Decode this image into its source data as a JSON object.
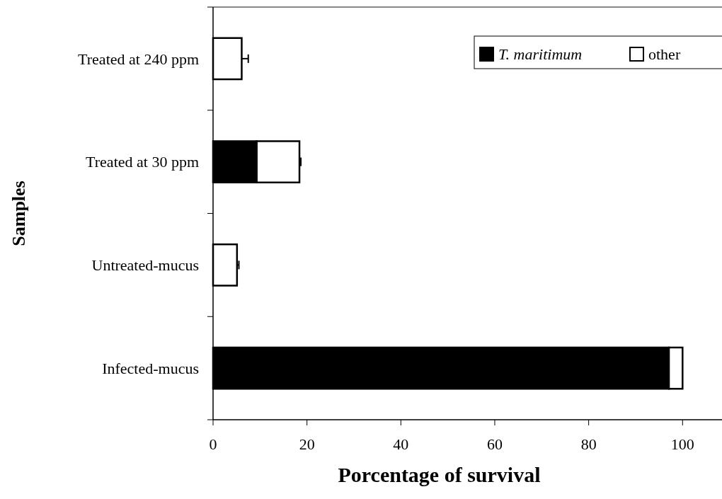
{
  "chart_data": {
    "type": "bar",
    "orientation": "horizontal",
    "stacked": true,
    "xlabel": "Porcentage of survival",
    "ylabel": "Samples",
    "categories": [
      "Treated at 240 ppm",
      "Treated at 30 ppm",
      "Untreated-mucus",
      "Infected-mucus"
    ],
    "series": [
      {
        "name": "T. maritimum",
        "color": "#000000",
        "values": [
          0,
          9.3,
          0,
          97.1
        ]
      },
      {
        "name": "other",
        "color": "#ffffff",
        "values": [
          6.1,
          9.1,
          5.1,
          2.9
        ],
        "errors": [
          1.4,
          0.3,
          0.4,
          null
        ]
      }
    ],
    "xlim": [
      0,
      108.4
    ],
    "xticks": [
      0,
      20,
      40,
      60,
      80,
      100
    ],
    "grid": false,
    "legend": "top right"
  }
}
